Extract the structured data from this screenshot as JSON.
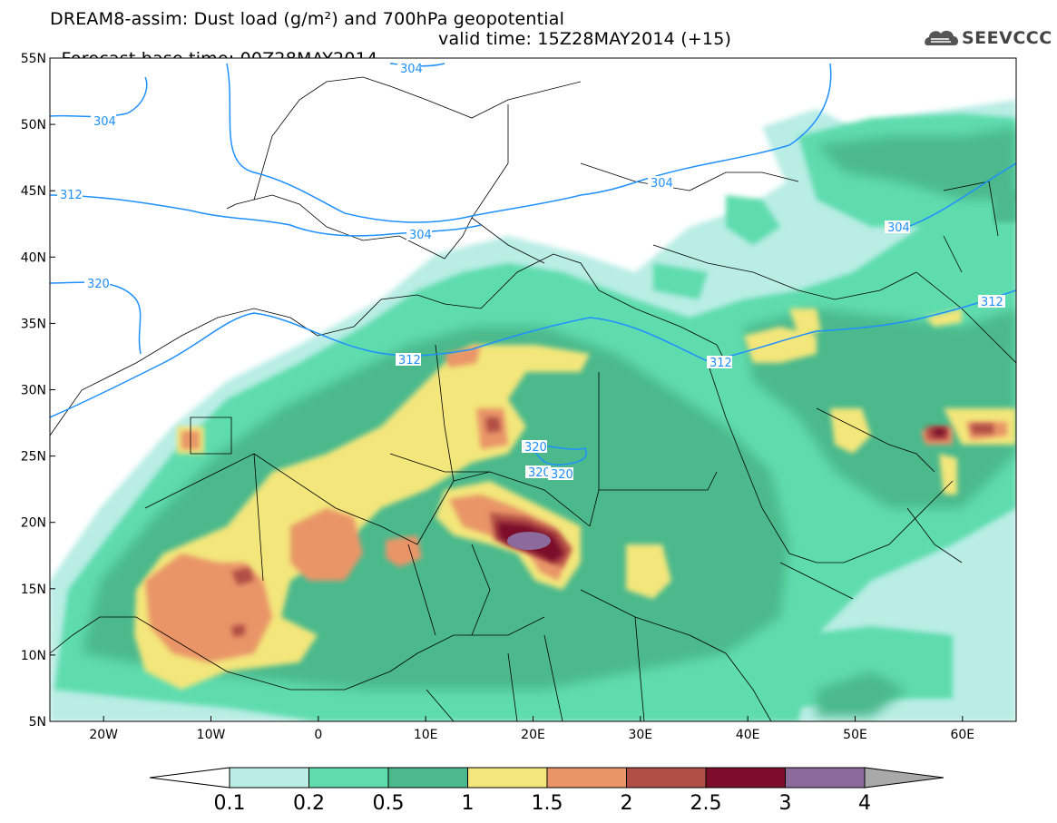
{
  "title": {
    "line1": "DREAM8-assim: Dust load (g/m²) and 700hPa geopotential",
    "line2_base": "Forecast base time: 00Z28MAY2014",
    "line2_valid": "valid time: 15Z28MAY2014 (+15)"
  },
  "logo": {
    "text": "SEEVCCC",
    "icon": "cloud-icon"
  },
  "map": {
    "lon_range": [
      -25,
      65
    ],
    "lat_range": [
      5,
      55
    ],
    "lon_ticks": [
      {
        "lon": -20,
        "label": "20W"
      },
      {
        "lon": -10,
        "label": "10W"
      },
      {
        "lon": 0,
        "label": "0"
      },
      {
        "lon": 10,
        "label": "10E"
      },
      {
        "lon": 20,
        "label": "20E"
      },
      {
        "lon": 30,
        "label": "30E"
      },
      {
        "lon": 40,
        "label": "40E"
      },
      {
        "lon": 50,
        "label": "50E"
      },
      {
        "lon": 60,
        "label": "60E"
      }
    ],
    "lat_ticks": [
      {
        "lat": 55,
        "label": "55N"
      },
      {
        "lat": 50,
        "label": "50N"
      },
      {
        "lat": 45,
        "label": "45N"
      },
      {
        "lat": 40,
        "label": "40N"
      },
      {
        "lat": 35,
        "label": "35N"
      },
      {
        "lat": 30,
        "label": "30N"
      },
      {
        "lat": 25,
        "label": "25N"
      },
      {
        "lat": 20,
        "label": "20N"
      },
      {
        "lat": 15,
        "label": "15N"
      },
      {
        "lat": 10,
        "label": "10N"
      },
      {
        "lat": 5,
        "label": "5N"
      }
    ],
    "geopotential_labels": [
      "304",
      "304",
      "312",
      "304",
      "320",
      "312",
      "312",
      "320",
      "320",
      "320",
      "304",
      "304",
      "312"
    ],
    "contour_color": "#1e90ff"
  },
  "colorbar": {
    "levels": [
      "0.1",
      "0.2",
      "0.5",
      "1",
      "1.5",
      "2",
      "2.5",
      "3",
      "4"
    ],
    "colors": [
      "#ffffff",
      "#b9ede5",
      "#5fdcae",
      "#4cb98c",
      "#f3e67a",
      "#e99568",
      "#b14e45",
      "#7c0e2b",
      "#8c6a9c",
      "#a9a9a9"
    ]
  }
}
